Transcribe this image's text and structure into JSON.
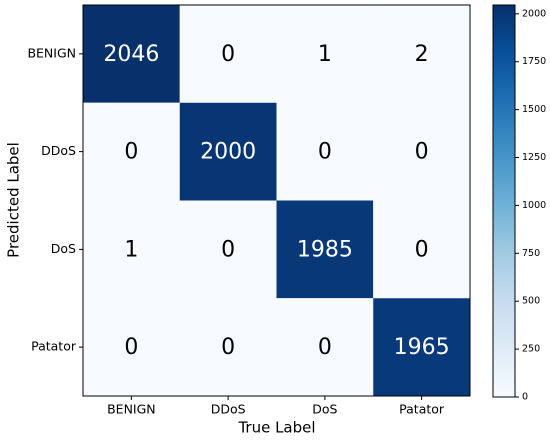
{
  "chart_data": {
    "type": "heatmap",
    "x_labels": [
      "BENIGN",
      "DDoS",
      "DoS",
      "Patator"
    ],
    "y_labels": [
      "BENIGN",
      "DDoS",
      "DoS",
      "Patator"
    ],
    "xlabel": "True Label",
    "ylabel": "Predicted Label",
    "values": [
      [
        2046,
        0,
        1,
        2
      ],
      [
        0,
        2000,
        0,
        0
      ],
      [
        1,
        0,
        1985,
        0
      ],
      [
        0,
        0,
        0,
        1965
      ]
    ],
    "colormap": [
      "#f7fbff",
      "#deebf7",
      "#c6dbef",
      "#9ecae1",
      "#6baed6",
      "#4292c6",
      "#2171b5",
      "#08519c",
      "#08306b"
    ],
    "zlim": [
      0,
      2046
    ],
    "colorbar_ticks": [
      0,
      250,
      500,
      750,
      1000,
      1250,
      1500,
      1750,
      2000
    ]
  }
}
